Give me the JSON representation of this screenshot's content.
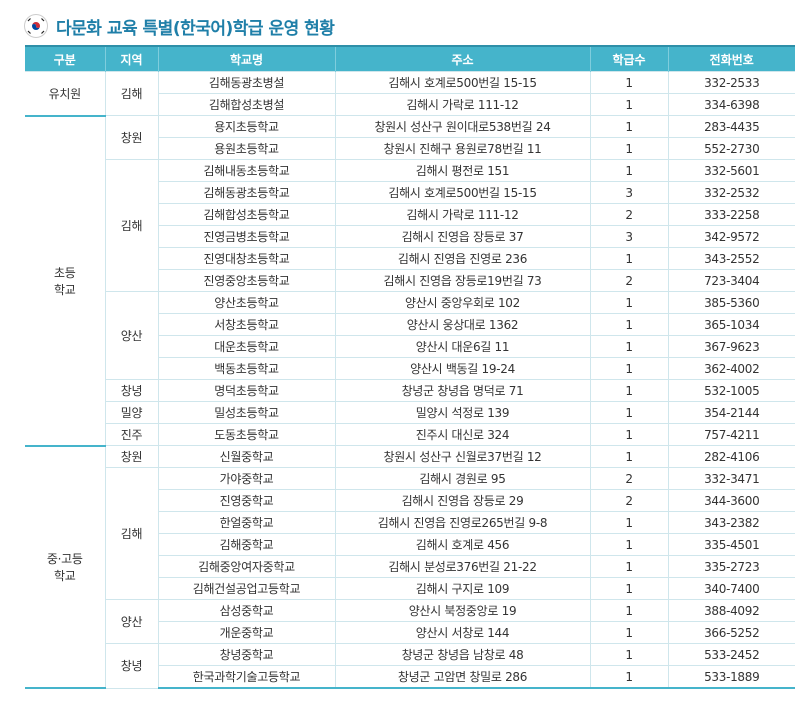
{
  "header": {
    "title": "다문화 교육 특별(한국어)학급 운영 현황"
  },
  "table": {
    "headers": [
      "구분",
      "지역",
      "학교명",
      "주소",
      "학급수",
      "전화번호"
    ],
    "groups": [
      {
        "category": "유치원",
        "regions": [
          {
            "region": "김해",
            "rows": [
              [
                "김해동광초병설",
                "김해시 호계로500번길 15-15",
                1,
                "332-2533"
              ],
              [
                "김해합성초병설",
                "김해시 가락로 111-12",
                1,
                "334-6398"
              ]
            ]
          }
        ]
      },
      {
        "category": "초등\n학교",
        "regions": [
          {
            "region": "창원",
            "rows": [
              [
                "용지초등학교",
                "창원시 성산구 원이대로538번길 24",
                1,
                "283-4435"
              ],
              [
                "용원초등학교",
                "창원시 진해구 용원로78번길 11",
                1,
                "552-2730"
              ]
            ]
          },
          {
            "region": "김해",
            "rows": [
              [
                "김해내동초등학교",
                "김해시 평전로 151",
                1,
                "332-5601"
              ],
              [
                "김해동광초등학교",
                "김해시 호계로500번길 15-15",
                3,
                "332-2532"
              ],
              [
                "김해합성초등학교",
                "김해시 가락로 111-12",
                2,
                "333-2258"
              ],
              [
                "진영금병초등학교",
                "김해시 진영읍 장등로 37",
                3,
                "342-9572"
              ],
              [
                "진영대창초등학교",
                "김해시 진영읍 진영로 236",
                1,
                "343-2552"
              ],
              [
                "진영중앙초등학교",
                "김해시 진영읍 장등로19번길 73",
                2,
                "723-3404"
              ]
            ]
          },
          {
            "region": "양산",
            "rows": [
              [
                "양산초등학교",
                "양산시 중앙우회로 102",
                1,
                "385-5360"
              ],
              [
                "서창초등학교",
                "양산시 웅상대로 1362",
                1,
                "365-1034"
              ],
              [
                "대운초등학교",
                "양산시 대운6길 11",
                1,
                "367-9623"
              ],
              [
                "백동초등학교",
                "양산시 백동길 19-24",
                1,
                "362-4002"
              ]
            ]
          },
          {
            "region": "창녕",
            "rows": [
              [
                "명덕초등학교",
                "창녕군 창녕읍 명덕로 71",
                1,
                "532-1005"
              ]
            ]
          },
          {
            "region": "밀양",
            "rows": [
              [
                "밀성초등학교",
                "밀양시 석정로 139",
                1,
                "354-2144"
              ]
            ]
          },
          {
            "region": "진주",
            "rows": [
              [
                "도동초등학교",
                "진주시 대신로 324",
                1,
                "757-4211"
              ]
            ]
          }
        ]
      },
      {
        "category": "중·고등\n학교",
        "regions": [
          {
            "region": "창원",
            "rows": [
              [
                "신월중학교",
                "창원시 성산구 신월로37번길 12",
                1,
                "282-4106"
              ]
            ]
          },
          {
            "region": "김해",
            "rows": [
              [
                "가야중학교",
                "김해시 경원로 95",
                2,
                "332-3471"
              ],
              [
                "진영중학교",
                "김해시 진영읍 장등로 29",
                2,
                "344-3600"
              ],
              [
                "한얼중학교",
                "김해시 진영읍 진영로265번길 9-8",
                1,
                "343-2382"
              ],
              [
                "김해중학교",
                "김해시 호계로 456",
                1,
                "335-4501"
              ],
              [
                "김해중앙여자중학교",
                "김해시 분성로376번길 21-22",
                1,
                "335-2723"
              ],
              [
                "김해건설공업고등학교",
                "김해시 구지로 109",
                1,
                "340-7400"
              ]
            ]
          },
          {
            "region": "양산",
            "rows": [
              [
                "삼성중학교",
                "양산시 북정중앙로 19",
                1,
                "388-4092"
              ],
              [
                "개운중학교",
                "양산시 서창로 144",
                1,
                "366-5252"
              ]
            ]
          },
          {
            "region": "창녕",
            "rows": [
              [
                "창녕중학교",
                "창녕군 창녕읍 남창로 48",
                1,
                "533-2452"
              ],
              [
                "한국과학기술고등학교",
                "창녕군 고암면 창밀로 286",
                1,
                "533-1889"
              ]
            ]
          }
        ]
      }
    ]
  }
}
